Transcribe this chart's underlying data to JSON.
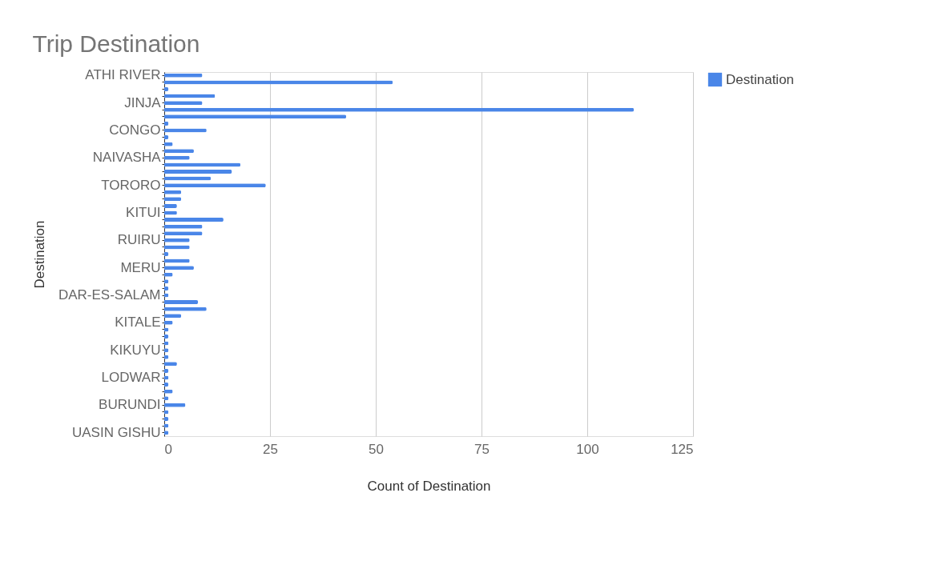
{
  "chart_data": {
    "type": "bar",
    "orientation": "horizontal",
    "title": "Trip Destination",
    "xlabel": "Count of Destination",
    "ylabel": "Destination",
    "categories": [
      "ATHI RIVER",
      null,
      null,
      null,
      "JINJA",
      null,
      null,
      null,
      "CONGO",
      null,
      null,
      null,
      "NAIVASHA",
      null,
      null,
      null,
      "TORORO",
      null,
      null,
      null,
      "KITUI",
      null,
      null,
      null,
      "RUIRU",
      null,
      null,
      null,
      "MERU",
      null,
      null,
      null,
      "DAR-ES-SALAM",
      null,
      null,
      null,
      "KITALE",
      null,
      null,
      null,
      "KIKUYU",
      null,
      null,
      null,
      "LODWAR",
      null,
      null,
      null,
      "BURUNDI",
      null,
      null,
      null,
      "UASIN GISHU"
    ],
    "series": [
      {
        "name": "Destination",
        "color": "#4a86e8",
        "values": [
          9,
          54,
          1,
          12,
          9,
          111,
          43,
          1,
          10,
          1,
          2,
          7,
          6,
          18,
          16,
          11,
          24,
          4,
          4,
          3,
          3,
          14,
          9,
          9,
          6,
          6,
          1,
          6,
          7,
          2,
          1,
          1,
          1,
          8,
          10,
          4,
          2,
          1,
          1,
          1,
          1,
          1,
          3,
          1,
          1,
          1,
          2,
          1,
          5,
          1,
          1,
          1,
          1
        ]
      }
    ],
    "xlim": [
      0,
      125
    ],
    "xticks": [
      0,
      25,
      50,
      75,
      100,
      125
    ],
    "grid": "x",
    "legend": "top right"
  }
}
